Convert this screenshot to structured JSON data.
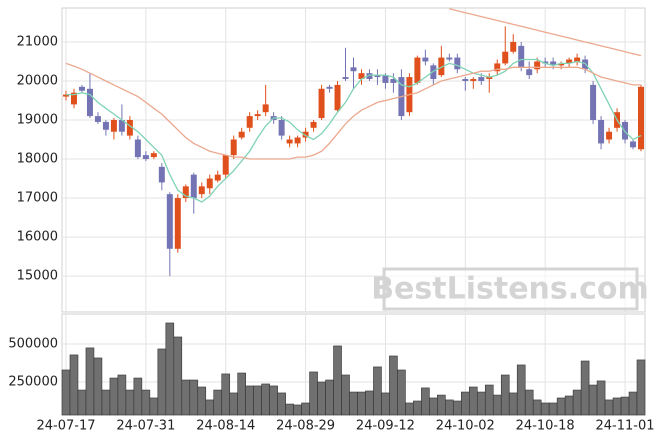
{
  "chart_data": {
    "type": "candlestick",
    "watermark": "BestListens.com",
    "categories": [
      "24-07-17",
      null,
      null,
      null,
      null,
      null,
      null,
      null,
      null,
      null,
      "24-07-31",
      null,
      null,
      null,
      null,
      null,
      null,
      null,
      null,
      null,
      "24-08-14",
      null,
      null,
      null,
      null,
      null,
      null,
      null,
      null,
      null,
      "24-08-29",
      null,
      null,
      null,
      null,
      null,
      null,
      null,
      null,
      null,
      "24-09-12",
      null,
      null,
      null,
      null,
      null,
      null,
      null,
      null,
      null,
      "24-10-02",
      null,
      null,
      null,
      null,
      null,
      null,
      null,
      null,
      null,
      "24-10-18",
      null,
      null,
      null,
      null,
      null,
      null,
      null,
      null,
      null,
      "24-11-01",
      null,
      null
    ],
    "open": [
      19600,
      19400,
      19850,
      19800,
      19100,
      18950,
      18700,
      19000,
      18600,
      18500,
      18100,
      18050,
      17800,
      17100,
      15700,
      17000,
      17600,
      17100,
      17250,
      17450,
      17600,
      18100,
      18550,
      18800,
      19100,
      19200,
      19100,
      19000,
      18400,
      18400,
      18550,
      18800,
      19050,
      19850,
      19250,
      20100,
      20350,
      20050,
      20200,
      20150,
      20150,
      20050,
      20100,
      19200,
      19950,
      20600,
      20400,
      20150,
      20600,
      20600,
      20050,
      20000,
      20100,
      20050,
      20250,
      20450,
      20750,
      20900,
      20300,
      20300,
      20500,
      20500,
      20400,
      20450,
      20500,
      20550,
      19900,
      19000,
      18500,
      18800,
      18950,
      18450,
      18250
    ],
    "high": [
      19750,
      19800,
      19900,
      20200,
      19200,
      19000,
      19050,
      19400,
      19100,
      18600,
      18200,
      18200,
      17900,
      17150,
      17100,
      17350,
      17650,
      17400,
      17600,
      17700,
      18100,
      18600,
      18800,
      19200,
      19250,
      19900,
      19200,
      19100,
      18600,
      18600,
      18800,
      19000,
      19900,
      19900,
      20000,
      20850,
      20600,
      20300,
      20300,
      20300,
      20200,
      20200,
      20300,
      20200,
      20650,
      20800,
      20450,
      20900,
      20700,
      20700,
      20100,
      20100,
      20200,
      20200,
      20550,
      21400,
      21200,
      21000,
      20500,
      20600,
      20600,
      20600,
      20500,
      20600,
      20700,
      20650,
      20000,
      19100,
      18800,
      19300,
      19000,
      18500,
      19900
    ],
    "low": [
      19500,
      19300,
      19700,
      19050,
      18900,
      18600,
      18500,
      18600,
      18500,
      18000,
      17950,
      18000,
      17200,
      15000,
      15600,
      16900,
      16600,
      17000,
      17100,
      17400,
      17500,
      18000,
      18500,
      18700,
      19000,
      19100,
      18900,
      18500,
      18300,
      18300,
      18450,
      18700,
      19000,
      19700,
      19200,
      20000,
      19800,
      19900,
      20000,
      19900,
      19800,
      19700,
      19000,
      19100,
      19900,
      20400,
      19900,
      20100,
      20500,
      20200,
      19750,
      19800,
      19900,
      19700,
      20150,
      20400,
      20700,
      20250,
      20050,
      20200,
      20350,
      20300,
      20300,
      20350,
      20400,
      20200,
      18900,
      18250,
      18400,
      18700,
      18400,
      18250,
      18200
    ],
    "close": [
      19650,
      19700,
      19750,
      19100,
      18950,
      18750,
      19000,
      18700,
      19000,
      18050,
      18000,
      18150,
      17400,
      15700,
      17000,
      17300,
      17000,
      17300,
      17500,
      17600,
      18100,
      18500,
      18700,
      19100,
      19150,
      19400,
      19000,
      18600,
      18500,
      18550,
      18700,
      18950,
      19800,
      19800,
      19900,
      20050,
      20250,
      20200,
      20050,
      20100,
      19950,
      19950,
      19100,
      20100,
      20600,
      20500,
      20050,
      20600,
      20550,
      20300,
      20000,
      20050,
      20000,
      20100,
      20450,
      20750,
      21000,
      20350,
      20150,
      20500,
      20450,
      20400,
      20450,
      20550,
      20600,
      20300,
      19000,
      18400,
      18700,
      19200,
      18500,
      18300,
      19850
    ],
    "up_color": "#e0501c",
    "down_color": "#7474b4",
    "series": [
      {
        "color": "#7fd3b4",
        "values": [
          19650,
          19650,
          19700,
          19650,
          19450,
          19300,
          19150,
          19000,
          18850,
          18700,
          18500,
          18300,
          18100,
          17600,
          17200,
          17050,
          17000,
          16900,
          17050,
          17300,
          17500,
          17700,
          17950,
          18200,
          18550,
          18850,
          19050,
          19050,
          18950,
          18750,
          18600,
          18500,
          18650,
          18900,
          19200,
          19450,
          19800,
          20050,
          20150,
          20150,
          20150,
          20100,
          19900,
          19850,
          19950,
          20100,
          20250,
          20350,
          20450,
          20400,
          20300,
          20200,
          20150,
          20100,
          20150,
          20250,
          20450,
          20550,
          20550,
          20550,
          20450,
          20400,
          20450,
          20450,
          20500,
          20450,
          20200,
          19800,
          19400,
          19000,
          18700,
          18500,
          18600
        ]
      },
      {
        "color": "#eba88e",
        "values": [
          20450,
          20380,
          20300,
          20200,
          20100,
          20000,
          19900,
          19800,
          19700,
          19600,
          19450,
          19300,
          19150,
          18950,
          18750,
          18550,
          18400,
          18300,
          18200,
          18150,
          18100,
          18050,
          18050,
          18000,
          18000,
          18000,
          18000,
          18000,
          18000,
          18050,
          18050,
          18100,
          18200,
          18400,
          18650,
          18900,
          19100,
          19250,
          19350,
          19450,
          19500,
          19550,
          19600,
          19650,
          19700,
          19800,
          19900,
          20000,
          20050,
          20100,
          20150,
          20200,
          20250,
          20250,
          20300,
          20300,
          20350,
          20350,
          20350,
          20350,
          20350,
          20350,
          20350,
          20350,
          20350,
          20300,
          20200,
          20100,
          20050,
          20000,
          19950,
          19900,
          19900
        ]
      },
      {
        "color": "#eba88e",
        "values": [
          null,
          null,
          null,
          null,
          null,
          null,
          null,
          null,
          null,
          null,
          null,
          null,
          null,
          null,
          null,
          null,
          null,
          null,
          null,
          null,
          null,
          null,
          null,
          null,
          null,
          null,
          null,
          null,
          null,
          null,
          null,
          null,
          null,
          null,
          null,
          null,
          null,
          null,
          null,
          null,
          null,
          null,
          null,
          null,
          null,
          null,
          null,
          null,
          21850,
          21800,
          21750,
          21700,
          21650,
          21600,
          21550,
          21500,
          21450,
          21400,
          21350,
          21300,
          21250,
          21200,
          21150,
          21100,
          21050,
          21000,
          20950,
          20900,
          20850,
          20800,
          20750,
          20700,
          20650
        ]
      }
    ],
    "ylim": [
      14080,
      21870
    ],
    "yticks": [
      15000,
      16000,
      17000,
      18000,
      19000,
      20000,
      21000
    ],
    "volume": [
      329000,
      428000,
      197000,
      474000,
      408000,
      197000,
      276000,
      296000,
      197000,
      276000,
      197000,
      145000,
      467000,
      638000,
      546000,
      263000,
      263000,
      217000,
      132000,
      197000,
      303000,
      178000,
      309000,
      224000,
      224000,
      237000,
      224000,
      178000,
      105000,
      99000,
      112000,
      316000,
      250000,
      263000,
      487000,
      296000,
      184000,
      184000,
      191000,
      349000,
      178000,
      421000,
      329000,
      112000,
      125000,
      211000,
      145000,
      164000,
      132000,
      125000,
      184000,
      217000,
      184000,
      230000,
      164000,
      296000,
      178000,
      362000,
      197000,
      132000,
      112000,
      112000,
      145000,
      158000,
      197000,
      388000,
      230000,
      257000,
      132000,
      145000,
      151000,
      184000,
      395000
    ],
    "volume_color": "#707070",
    "volume_ylim": [
      33000,
      697000
    ],
    "volume_yticks": [
      250000,
      500000
    ],
    "grid": true
  }
}
